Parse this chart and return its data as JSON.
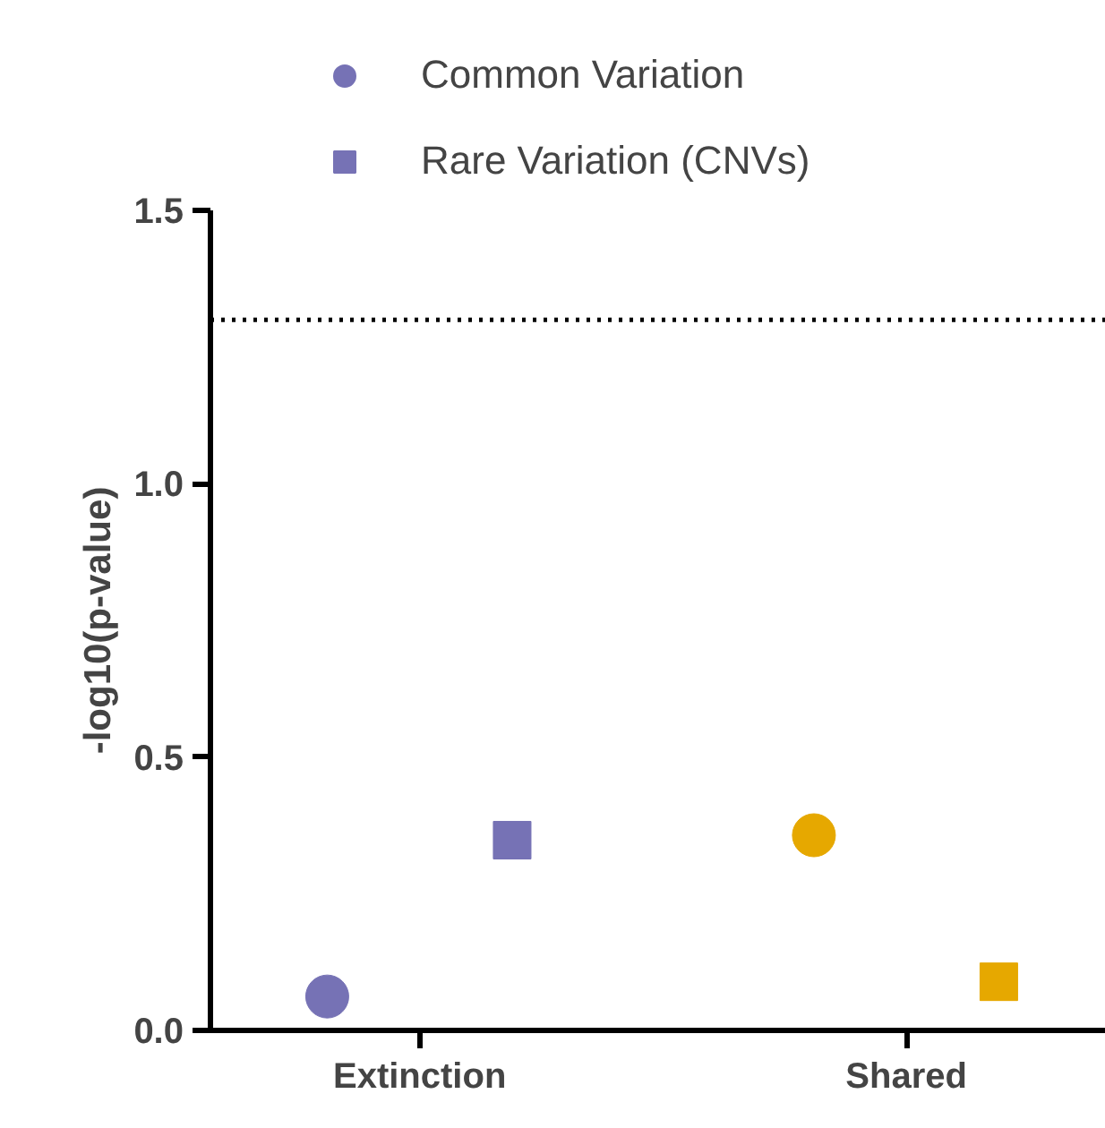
{
  "chart_data": {
    "type": "scatter",
    "categories": [
      "Extinction",
      "Shared"
    ],
    "ylabel": "-log10(p-value)",
    "ylim": [
      0,
      1.5
    ],
    "yticks": [
      {
        "value": 0,
        "label": "0.0"
      },
      0.5,
      {
        "value": 1,
        "label": "1.0"
      },
      1.5
    ],
    "grid": false,
    "legend": "top",
    "series": [
      {
        "name": "Common Variation",
        "marker": "circle",
        "colors": [
          "#7672b5",
          "#e6a800"
        ],
        "values": [
          0.062,
          0.357
        ]
      },
      {
        "name": "Rare Variation (CNVs)",
        "marker": "square",
        "colors": [
          "#7672b5",
          "#e6a800"
        ],
        "values": [
          0.348,
          0.089
        ]
      }
    ],
    "ref_lines": [
      {
        "axis": "y",
        "value": 1.3,
        "line_style": "dotted"
      }
    ]
  }
}
